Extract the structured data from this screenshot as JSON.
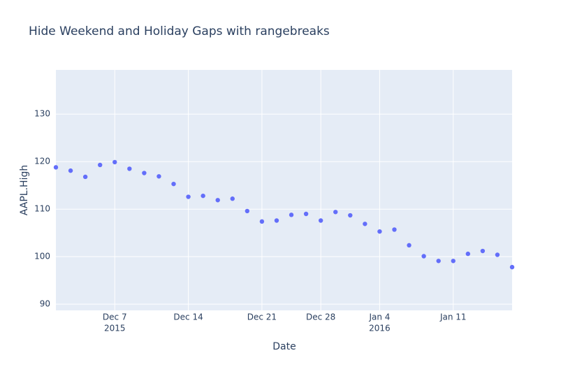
{
  "chart_data": {
    "type": "scatter",
    "title": "Hide Weekend and Holiday Gaps with rangebreaks",
    "x_label": "Date",
    "y_label": "AAPL.High",
    "x": [
      "2015-12-01",
      "2015-12-02",
      "2015-12-03",
      "2015-12-04",
      "2015-12-07",
      "2015-12-08",
      "2015-12-09",
      "2015-12-10",
      "2015-12-11",
      "2015-12-14",
      "2015-12-15",
      "2015-12-16",
      "2015-12-17",
      "2015-12-18",
      "2015-12-21",
      "2015-12-22",
      "2015-12-23",
      "2015-12-24",
      "2015-12-28",
      "2015-12-29",
      "2015-12-30",
      "2015-12-31",
      "2016-01-04",
      "2016-01-05",
      "2016-01-06",
      "2016-01-07",
      "2016-01-08",
      "2016-01-11",
      "2016-01-12",
      "2016-01-13",
      "2016-01-14",
      "2016-01-15"
    ],
    "series": [
      {
        "name": "AAPL.High",
        "color": "#636efa",
        "values": [
          118.8,
          118.1,
          116.8,
          119.3,
          119.9,
          118.5,
          117.6,
          116.9,
          115.3,
          112.6,
          112.8,
          111.9,
          112.2,
          109.6,
          107.4,
          107.6,
          108.8,
          109.0,
          107.6,
          109.4,
          108.7,
          106.9,
          105.3,
          105.7,
          102.4,
          100.1,
          99.1,
          99.1,
          100.6,
          101.2,
          100.4,
          97.8
        ]
      }
    ],
    "rangebreaks": [
      {
        "bounds": [
          "sat",
          "mon"
        ]
      },
      {
        "values": [
          "2015-12-25",
          "2016-01-01"
        ]
      }
    ],
    "xlim": [
      "2015-12-01",
      "2016-01-15"
    ],
    "xticks": [
      {
        "value": "2015-12-07",
        "label": "Dec 7"
      },
      {
        "value": "2015-12-14",
        "label": "Dec 14"
      },
      {
        "value": "2015-12-21",
        "label": "Dec 21"
      },
      {
        "value": "2015-12-28",
        "label": "Dec 28"
      },
      {
        "value": "2016-01-04",
        "label": "Jan 4"
      },
      {
        "value": "2016-01-11",
        "label": "Jan 11"
      }
    ],
    "xtick_year_labels": [
      {
        "value": "2015-12-07",
        "label": "2015"
      },
      {
        "value": "2016-01-04",
        "label": "2016"
      }
    ],
    "ylim": [
      88.7,
      139.3
    ],
    "yticks": [
      90,
      100,
      110,
      120,
      130
    ],
    "grid": true,
    "plot_bgcolor": "#e5ecf6",
    "grid_color": "#ffffff"
  }
}
